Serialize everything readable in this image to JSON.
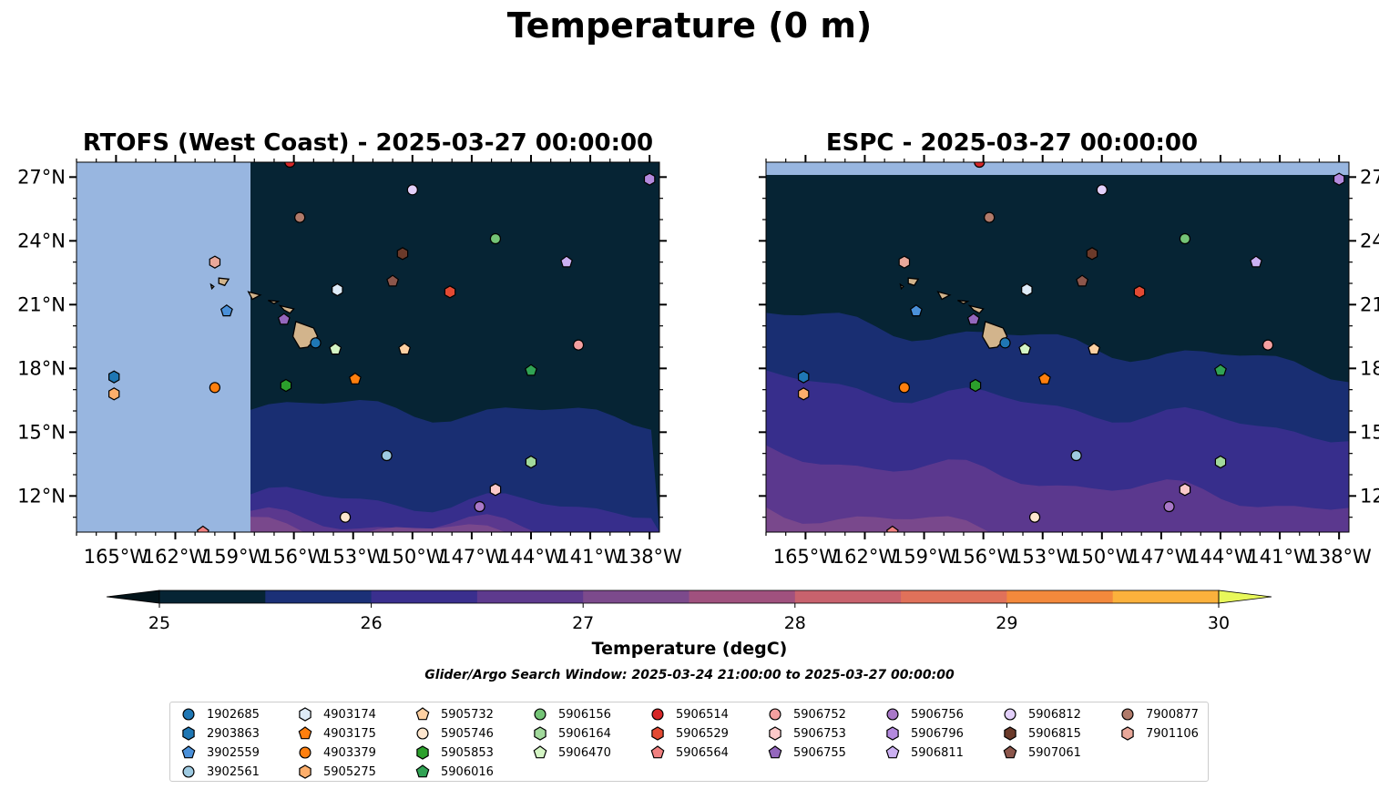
{
  "title": "Temperature (0 m)",
  "panels": [
    {
      "title": "RTOFS (West Coast) - 2025-03-27 00:00:00",
      "model": "rtofs"
    },
    {
      "title": "ESPC - 2025-03-27 00:00:00",
      "model": "espc"
    }
  ],
  "map": {
    "lon_range": [
      -167,
      -137.5
    ],
    "lat_range": [
      10.3,
      27.7
    ],
    "lon_ticks": [
      "165°W",
      "162°W",
      "159°W",
      "156°W",
      "153°W",
      "150°W",
      "147°W",
      "144°W",
      "141°W",
      "138°W"
    ],
    "lat_ticks": [
      "12°N",
      "15°N",
      "18°N",
      "21°N",
      "24°N",
      "27°N"
    ],
    "land_color": "#d2b48c",
    "nodata_color": "#98b6e0"
  },
  "colorbar": {
    "label": "Temperature (degC)",
    "min": 25,
    "max": 30,
    "step": 0.5,
    "tick_labels": [
      "25",
      "26",
      "27",
      "28",
      "29",
      "30"
    ],
    "colors": [
      "#062434",
      "#1b3077",
      "#3a2f8e",
      "#5e3a8e",
      "#7c4a8c",
      "#a0517e",
      "#c8626d",
      "#e0715a",
      "#f3893c",
      "#fbb13c"
    ],
    "under_color": "#03141a",
    "over_color": "#e8f85a"
  },
  "search_window": "Glider/Argo Search Window: 2025-03-24 21:00:00 to 2025-03-27 00:00:00",
  "floats": [
    {
      "id": "1902685",
      "marker": "circle",
      "color": "#1f77b4",
      "lon": -154.9,
      "lat": 19.2
    },
    {
      "id": "2903863",
      "marker": "hexagon",
      "color": "#1f77b4",
      "lon": -165.1,
      "lat": 17.6
    },
    {
      "id": "3902559",
      "marker": "pentagon",
      "color": "#4a90d9",
      "lon": -159.4,
      "lat": 20.7
    },
    {
      "id": "3902561",
      "marker": "circle",
      "color": "#9ecae1",
      "lon": -151.3,
      "lat": 13.9
    },
    {
      "id": "4903174",
      "marker": "hexagon",
      "color": "#deebf7",
      "lon": -153.8,
      "lat": 21.7
    },
    {
      "id": "4903175",
      "marker": "pentagon",
      "color": "#ff7f0e",
      "lon": -152.9,
      "lat": 17.5
    },
    {
      "id": "4903379",
      "marker": "circle",
      "color": "#ff7f0e",
      "lon": -160.0,
      "lat": 17.1
    },
    {
      "id": "5905275",
      "marker": "hexagon",
      "color": "#fdae6b",
      "lon": -165.1,
      "lat": 16.8
    },
    {
      "id": "5905732",
      "marker": "pentagon",
      "color": "#fdd0a2",
      "lon": -150.4,
      "lat": 18.9
    },
    {
      "id": "5905746",
      "marker": "circle",
      "color": "#fee6ce",
      "lon": -153.4,
      "lat": 11.0
    },
    {
      "id": "5905853",
      "marker": "hexagon",
      "color": "#2ca02c",
      "lon": -156.4,
      "lat": 17.2
    },
    {
      "id": "5906016",
      "marker": "pentagon",
      "color": "#31a354",
      "lon": -144.0,
      "lat": 17.9
    },
    {
      "id": "5906156",
      "marker": "circle",
      "color": "#74c476",
      "lon": -145.8,
      "lat": 24.1
    },
    {
      "id": "5906164",
      "marker": "hexagon",
      "color": "#a1d99b",
      "lon": -144.0,
      "lat": 13.6
    },
    {
      "id": "5906470",
      "marker": "pentagon",
      "color": "#d4f5c4",
      "lon": -153.9,
      "lat": 18.9
    },
    {
      "id": "5906514",
      "marker": "circle",
      "color": "#d62728",
      "lon": -156.2,
      "lat": 27.7
    },
    {
      "id": "5906529",
      "marker": "hexagon",
      "color": "#e34a33",
      "lon": -148.1,
      "lat": 21.6
    },
    {
      "id": "5906564",
      "marker": "pentagon",
      "color": "#f08080",
      "lon": -160.6,
      "lat": 10.3
    },
    {
      "id": "5906752",
      "marker": "circle",
      "color": "#f4a0a0",
      "lon": -141.6,
      "lat": 19.1
    },
    {
      "id": "5906753",
      "marker": "hexagon",
      "color": "#fcc9c9",
      "lon": -145.8,
      "lat": 12.3
    },
    {
      "id": "5906755",
      "marker": "pentagon",
      "color": "#9467bd",
      "lon": -156.5,
      "lat": 20.3
    },
    {
      "id": "5906756",
      "marker": "circle",
      "color": "#a978c8",
      "lon": -146.6,
      "lat": 11.5
    },
    {
      "id": "5906796",
      "marker": "hexagon",
      "color": "#b48ade",
      "lon": -138.0,
      "lat": 26.9
    },
    {
      "id": "5906811",
      "marker": "pentagon",
      "color": "#cbb0f2",
      "lon": -142.2,
      "lat": 23.0
    },
    {
      "id": "5906812",
      "marker": "circle",
      "color": "#e3d0fa",
      "lon": -150.0,
      "lat": 26.4
    },
    {
      "id": "5906815",
      "marker": "hexagon",
      "color": "#6b3a2a",
      "lon": -150.5,
      "lat": 23.4
    },
    {
      "id": "5907061",
      "marker": "pentagon",
      "color": "#8c564b",
      "lon": -151.0,
      "lat": 22.1
    },
    {
      "id": "7900877",
      "marker": "circle",
      "color": "#b07a6a",
      "lon": -155.7,
      "lat": 25.1
    },
    {
      "id": "7901106",
      "marker": "hexagon",
      "color": "#e9a89a",
      "lon": -160.0,
      "lat": 23.0
    }
  ]
}
